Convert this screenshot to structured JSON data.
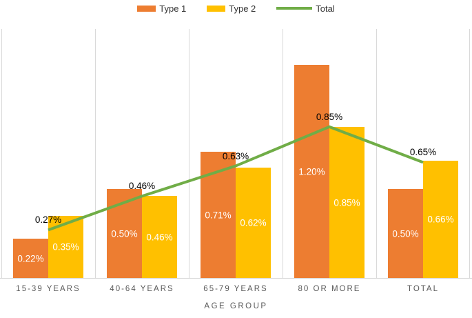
{
  "chart_data": {
    "type": "bar",
    "subtype": "grouped bars with overlay line (combo)",
    "categories": [
      "15-39 YEARS",
      "40-64 YEARS",
      "65-79 YEARS",
      "80 OR MORE",
      "TOTAL"
    ],
    "series": [
      {
        "name": "Type 1",
        "render": "bar",
        "color": "#ED7D31",
        "values": [
          0.22,
          0.5,
          0.71,
          1.2,
          0.5
        ],
        "labels": [
          "0.22%",
          "0.50%",
          "0.71%",
          "1.20%",
          "0.50%"
        ],
        "label_color": "#FFFFFF",
        "label_position": "inside-center"
      },
      {
        "name": "Type 2",
        "render": "bar",
        "color": "#FFC000",
        "values": [
          0.35,
          0.46,
          0.62,
          0.85,
          0.66
        ],
        "labels": [
          "0.35%",
          "0.46%",
          "0.62%",
          "0.85%",
          "0.66%"
        ],
        "label_color": "#FFFFFF",
        "label_position": "inside-center"
      },
      {
        "name": "Total",
        "render": "line",
        "color": "#70AD47",
        "values": [
          0.27,
          0.46,
          0.63,
          0.85,
          0.65
        ],
        "labels": [
          "0.27%",
          "0.46%",
          "0.63%",
          "0.85%",
          "0.65%"
        ],
        "label_color": "#000000",
        "label_position": "above"
      }
    ],
    "title": "",
    "xlabel": "AGE GROUP",
    "ylabel": "",
    "ylim": [
      0,
      1.4
    ],
    "y_axis_visible": false,
    "grid": "vertical category-boundary gridlines only",
    "gridline_color": "#D9D9D9",
    "axis_line_color": "#D9D9D9",
    "axis_text_color": "#595959",
    "legend_position": "top-center"
  }
}
